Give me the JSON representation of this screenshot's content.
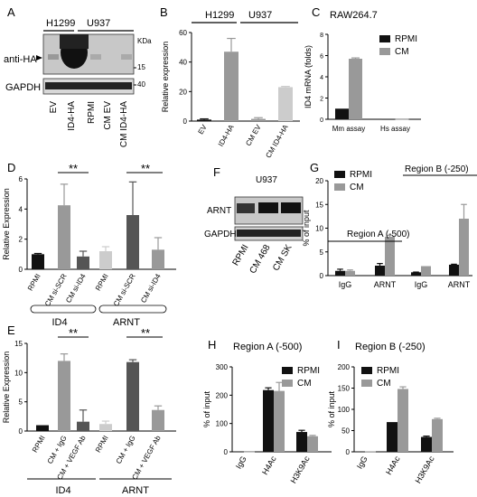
{
  "panel_letters": [
    "A",
    "B",
    "C",
    "D",
    "E",
    "F",
    "G",
    "H",
    "I"
  ],
  "blot_A": {
    "groups": [
      "H1299",
      "U937"
    ],
    "kda": "KDa",
    "markers": [
      "15",
      "40"
    ],
    "labels": [
      "anti-HA",
      "GAPDH"
    ],
    "lanes": [
      "EV",
      "ID4-HA",
      "RPMI",
      "CM EV",
      "CM ID4-HA"
    ]
  },
  "blot_F": {
    "title": "U937",
    "labels": [
      "ARNT",
      "GAPDH"
    ],
    "lanes": [
      "RPMI",
      "CM 468",
      "CM SK"
    ]
  },
  "colors": {
    "black": "#111111",
    "dark_gray": "#555555",
    "gray": "#999999",
    "light_gray": "#cccccc"
  },
  "chart_data": [
    {
      "id": "B",
      "type": "bar",
      "title_groups": [
        "H1299",
        "U937"
      ],
      "categories": [
        "EV",
        "ID4-HA",
        "CM EV",
        "CM ID4-HA"
      ],
      "values": [
        1,
        47,
        1.5,
        23
      ],
      "errors": [
        0.5,
        9,
        0.8,
        0.5
      ],
      "colors": [
        "#111111",
        "#999999",
        "#999999",
        "#cccccc"
      ],
      "ylabel": "Relative expression",
      "ylim": [
        0,
        60
      ],
      "yticks": [
        0,
        20,
        40,
        60
      ]
    },
    {
      "id": "C",
      "type": "bar",
      "title": "RAW264.7",
      "categories": [
        "Mm assay",
        "Hs assay"
      ],
      "series": [
        {
          "name": "RPMI",
          "values": [
            1,
            0.02
          ],
          "errors": [
            0,
            0
          ],
          "color": "#111111"
        },
        {
          "name": "CM",
          "values": [
            5.7,
            0.03
          ],
          "errors": [
            0.08,
            0
          ],
          "color": "#999999"
        }
      ],
      "ylabel": "ID4 mRNA (folds)",
      "ylim": [
        0,
        8
      ],
      "yticks": [
        0,
        2,
        4,
        6,
        8
      ]
    },
    {
      "id": "D",
      "type": "bar",
      "categories": [
        "RPMI",
        "CM si-SCR",
        "CM si-ID4",
        "RPMI",
        "CM si-SCR",
        "CM si-ID4"
      ],
      "values": [
        1,
        4.25,
        0.85,
        1.2,
        3.6,
        1.3
      ],
      "errors": [
        0.05,
        1.4,
        0.35,
        0.3,
        2.2,
        0.8
      ],
      "colors": [
        "#111111",
        "#999999",
        "#555555",
        "#cccccc",
        "#555555",
        "#999999"
      ],
      "group_labels": [
        "ID4",
        "ARNT"
      ],
      "significance": [
        "**",
        "**"
      ],
      "ylabel": "Relative Expression",
      "ylim": [
        0,
        6
      ],
      "yticks": [
        0,
        2,
        4,
        6
      ]
    },
    {
      "id": "E",
      "type": "bar",
      "categories": [
        "RPMI",
        "CM + IgG",
        "CM + VEGF Ab",
        "RPMI",
        "CM + IgG",
        "CM + VEGF Ab"
      ],
      "values": [
        1,
        12,
        1.6,
        1.2,
        11.8,
        3.6
      ],
      "errors": [
        0,
        1.2,
        2,
        0.5,
        0.4,
        0.7
      ],
      "colors": [
        "#111111",
        "#999999",
        "#555555",
        "#cccccc",
        "#555555",
        "#999999"
      ],
      "group_labels": [
        "ID4",
        "ARNT"
      ],
      "significance": [
        "**",
        "**"
      ],
      "ylabel": "Relative Expression",
      "ylim": [
        0,
        15
      ],
      "yticks": [
        0,
        5,
        10,
        15
      ]
    },
    {
      "id": "G",
      "type": "bar",
      "categories": [
        "IgG",
        "ARNT",
        "IgG",
        "ARNT"
      ],
      "series": [
        {
          "name": "RPMI",
          "values": [
            1,
            2.1,
            0.7,
            2.3
          ],
          "errors": [
            0.35,
            0.45,
            0.05,
            0.1
          ],
          "color": "#111111"
        },
        {
          "name": "CM",
          "values": [
            1,
            8.2,
            2,
            12
          ],
          "errors": [
            0.2,
            0.3,
            0,
            3
          ],
          "color": "#999999"
        }
      ],
      "region_labels": [
        "Region A (-500)",
        "Region B (-250)"
      ],
      "ylabel": "% of input",
      "ylim": [
        0,
        20
      ],
      "yticks": [
        0,
        5,
        10,
        15,
        20
      ]
    },
    {
      "id": "H",
      "type": "bar",
      "title": "Region A (-500)",
      "categories": [
        "IgG",
        "H4Ac",
        "H3K9Ac"
      ],
      "series": [
        {
          "name": "RPMI",
          "values": [
            1,
            218,
            70
          ],
          "errors": [
            0,
            8,
            6
          ],
          "color": "#111111"
        },
        {
          "name": "CM",
          "values": [
            1,
            215,
            55
          ],
          "errors": [
            0,
            30,
            3
          ],
          "color": "#999999"
        }
      ],
      "ylabel": "% of input",
      "ylim": [
        0,
        300
      ],
      "yticks": [
        0,
        100,
        200,
        300
      ]
    },
    {
      "id": "I",
      "type": "bar",
      "title": "Region B (-250)",
      "categories": [
        "IgG",
        "H4Ac",
        "H3K9Ac"
      ],
      "series": [
        {
          "name": "RPMI",
          "values": [
            1,
            70,
            35
          ],
          "errors": [
            0,
            0,
            2
          ],
          "color": "#111111"
        },
        {
          "name": "CM",
          "values": [
            1,
            148,
            77
          ],
          "errors": [
            0,
            5,
            2
          ],
          "color": "#999999"
        }
      ],
      "ylabel": "% of input",
      "ylim": [
        0,
        200
      ],
      "yticks": [
        0,
        50,
        100,
        150,
        200
      ]
    }
  ]
}
